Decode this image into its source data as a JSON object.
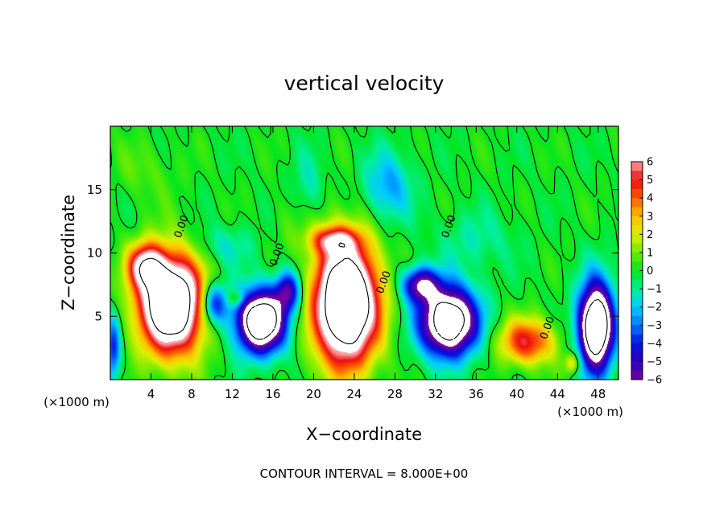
{
  "chart_data": {
    "type": "heatmap",
    "title": "vertical velocity",
    "xlabel": "X−coordinate",
    "ylabel": "Z−coordinate",
    "x_unit_label": "(×1000 m)",
    "y_unit_label": "(×1000 m)",
    "footer": "CONTOUR INTERVAL = 8.000E+00",
    "xlim": [
      0,
      50
    ],
    "ylim": [
      0,
      20
    ],
    "x_ticks": [
      4,
      8,
      12,
      16,
      20,
      24,
      28,
      32,
      36,
      40,
      44,
      48
    ],
    "x_tick_labels": [
      "4",
      "8",
      "12",
      "16",
      "20",
      "24",
      "28",
      "32",
      "36",
      "40",
      "44",
      "48"
    ],
    "y_ticks": [
      5,
      10,
      15
    ],
    "y_tick_labels": [
      "5",
      "10",
      "15"
    ],
    "colorbar": {
      "range": [
        -6,
        6
      ],
      "ticks": [
        6,
        5,
        4,
        3,
        2,
        1,
        0,
        -1,
        -2,
        -3,
        -4,
        -5,
        -6
      ],
      "tick_labels": [
        "6",
        "5",
        "4",
        "3",
        "2",
        "1",
        "0",
        "−1",
        "−2",
        "−3",
        "−4",
        "−5",
        "−6"
      ]
    },
    "contour_labels": [
      {
        "text": "0.00",
        "x": 7.3,
        "z": 12.0
      },
      {
        "text": "0.00",
        "x": 16.7,
        "z": 9.8
      },
      {
        "text": "0.00",
        "x": 27.2,
        "z": 7.6
      },
      {
        "text": "0.00",
        "x": 33.6,
        "z": 12.0
      },
      {
        "text": "0.00",
        "x": 43.3,
        "z": 4.0
      }
    ],
    "features": [
      {
        "kind": "updraft",
        "x": 6,
        "z": 6,
        "sx": 3.0,
        "sz": 3.6,
        "peak": 12
      },
      {
        "kind": "updraft",
        "x": 3.5,
        "z": 9,
        "sx": 1.6,
        "sz": 1.6,
        "peak": 6
      },
      {
        "kind": "updraft",
        "x": 23.2,
        "z": 6,
        "sx": 2.9,
        "sz": 4.4,
        "peak": 13
      },
      {
        "kind": "updraft",
        "x": 22,
        "z": 11,
        "sx": 2.2,
        "sz": 1.0,
        "peak": 4
      },
      {
        "kind": "updraft",
        "x": 41,
        "z": 3,
        "sx": 2.6,
        "sz": 1.7,
        "peak": 5
      },
      {
        "kind": "updraft",
        "x": 45.5,
        "z": 1.3,
        "sx": 0.7,
        "sz": 0.8,
        "peak": 3
      },
      {
        "kind": "updraft",
        "x": 12.4,
        "z": 6.4,
        "sx": 0.8,
        "sz": 0.6,
        "peak": 2.2
      },
      {
        "kind": "downdraft",
        "x": 14.8,
        "z": 4.6,
        "sx": 2.3,
        "sz": 2.3,
        "peak": -11
      },
      {
        "kind": "downdraft",
        "x": 10.2,
        "z": 6,
        "sx": 1.3,
        "sz": 1.6,
        "peak": -5
      },
      {
        "kind": "downdraft",
        "x": 17.5,
        "z": 7,
        "sx": 1.2,
        "sz": 1.5,
        "peak": -5
      },
      {
        "kind": "downdraft",
        "x": 33.3,
        "z": 4.6,
        "sx": 2.6,
        "sz": 2.5,
        "peak": -11
      },
      {
        "kind": "downdraft",
        "x": 30.5,
        "z": 7.5,
        "sx": 1.7,
        "sz": 1.3,
        "peak": -6
      },
      {
        "kind": "downdraft",
        "x": 47.8,
        "z": 4.2,
        "sx": 1.6,
        "sz": 3.2,
        "peak": -12
      },
      {
        "kind": "downdraft",
        "x": 0.3,
        "z": 2.5,
        "sx": 0.7,
        "sz": 2.5,
        "peak": -4
      },
      {
        "kind": "downdraft",
        "x": 27.3,
        "z": 15.2,
        "sx": 2.2,
        "sz": 2.6,
        "peak": -2.6
      },
      {
        "kind": "downdraft",
        "x": 19.5,
        "z": 14.5,
        "sx": 1.5,
        "sz": 3.0,
        "peak": -1.6
      },
      {
        "kind": "downdraft",
        "x": 11,
        "z": 10.5,
        "sx": 3.0,
        "sz": 1.6,
        "peak": -1.4
      },
      {
        "kind": "downdraft",
        "x": 36,
        "z": 11,
        "sx": 3.5,
        "sz": 2.2,
        "peak": -1.1
      },
      {
        "kind": "updraft",
        "x": 3.5,
        "z": 16.5,
        "sx": 3.0,
        "sz": 2.2,
        "peak": 0.7
      },
      {
        "kind": "updraft",
        "x": 19,
        "z": 12.5,
        "sx": 2.5,
        "sz": 2.5,
        "peak": 0.9
      }
    ]
  }
}
